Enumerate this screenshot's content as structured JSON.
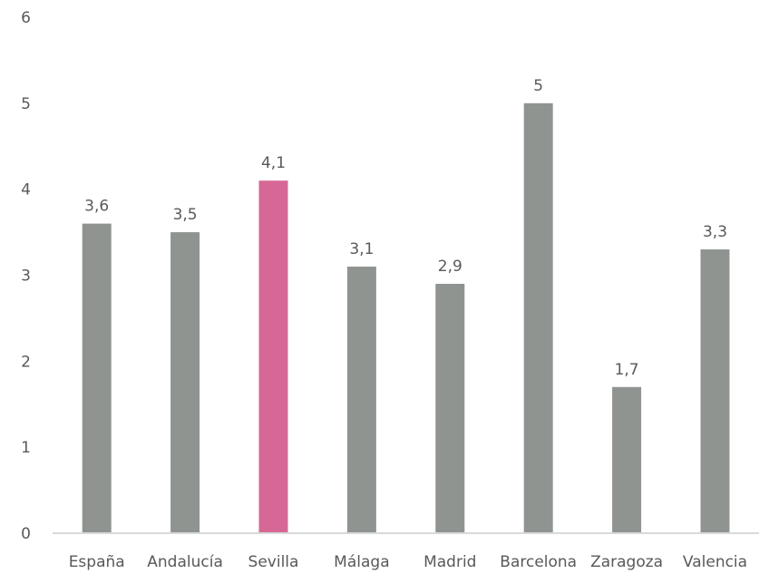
{
  "chart_data": {
    "type": "bar",
    "categories": [
      "España",
      "Andalucía",
      "Sevilla",
      "Málaga",
      "Madrid",
      "Barcelona",
      "Zaragoza",
      "Valencia"
    ],
    "values": [
      3.6,
      3.5,
      4.1,
      3.1,
      2.9,
      5,
      1.7,
      3.3
    ],
    "value_labels": [
      "3,6",
      "3,5",
      "4,1",
      "3,1",
      "2,9",
      "5",
      "1,7",
      "3,3"
    ],
    "y_ticks": [
      "0",
      "1",
      "2",
      "3",
      "4",
      "5",
      "6"
    ],
    "ylim": [
      0,
      6
    ],
    "title": "",
    "xlabel": "",
    "ylabel": "",
    "grid": false,
    "colors": {
      "default_bar": "#8F9491",
      "highlight_bar": "#D66895",
      "axis_line": "#D9D9D9",
      "label_text": "#595959"
    },
    "highlight_category": "Sevilla"
  }
}
